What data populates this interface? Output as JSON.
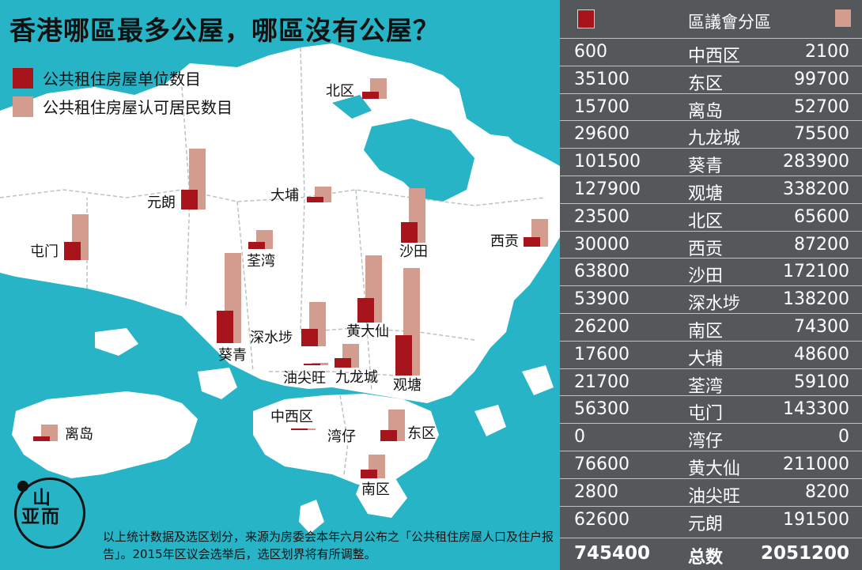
{
  "title": "香港哪區最多公屋，哪區沒有公屋？",
  "legend": {
    "units_label": "公共租住房屋单位数目",
    "residents_label": "公共租住房屋认可居民数目"
  },
  "colors": {
    "units": "#a8141c",
    "residents": "#d29c8e",
    "sea": "#26b4c6",
    "land": "#ffffff",
    "panel": "#54585b"
  },
  "scale_max": 338200,
  "map_labels": [
    "北区",
    "元朗",
    "大埔",
    "屯门",
    "荃湾",
    "沙田",
    "西贡",
    "深水埗",
    "黄大仙",
    "葵青",
    "油尖旺",
    "九龙城",
    "观塘",
    "离岛",
    "中西区",
    "湾仔",
    "东区",
    "南区"
  ],
  "districts": [
    {
      "name": "中西区",
      "units": 600,
      "residents": 2100
    },
    {
      "name": "东区",
      "units": 35100,
      "residents": 99700
    },
    {
      "name": "离岛",
      "units": 15700,
      "residents": 52700
    },
    {
      "name": "九龙城",
      "units": 29600,
      "residents": 75500
    },
    {
      "name": "葵青",
      "units": 101500,
      "residents": 283900
    },
    {
      "name": "观塘",
      "units": 127900,
      "residents": 338200
    },
    {
      "name": "北区",
      "units": 23500,
      "residents": 65600
    },
    {
      "name": "西贡",
      "units": 30000,
      "residents": 87200
    },
    {
      "name": "沙田",
      "units": 63800,
      "residents": 172100
    },
    {
      "name": "深水埗",
      "units": 53900,
      "residents": 138200
    },
    {
      "name": "南区",
      "units": 26200,
      "residents": 74300
    },
    {
      "name": "大埔",
      "units": 17600,
      "residents": 48600
    },
    {
      "name": "荃湾",
      "units": 21700,
      "residents": 59100
    },
    {
      "name": "屯门",
      "units": 56300,
      "residents": 143300
    },
    {
      "name": "湾仔",
      "units": 0,
      "residents": 0
    },
    {
      "name": "黄大仙",
      "units": 76600,
      "residents": 211000
    },
    {
      "name": "油尖旺",
      "units": 2800,
      "residents": 8200
    },
    {
      "name": "元朗",
      "units": 62600,
      "residents": 191500
    }
  ],
  "panel": {
    "header": "區議會分區",
    "total_label": "总数",
    "total_units": "745400",
    "total_residents": "2051200"
  },
  "footnote": "以上统计数据及选区划分，来源为房委会本年六月公布之「公共租住房屋人口及住户报告」。2015年区议会选举后，选区划界将有所调整。",
  "logo": {
    "text_top": "山",
    "text_bottom": "亚而"
  }
}
